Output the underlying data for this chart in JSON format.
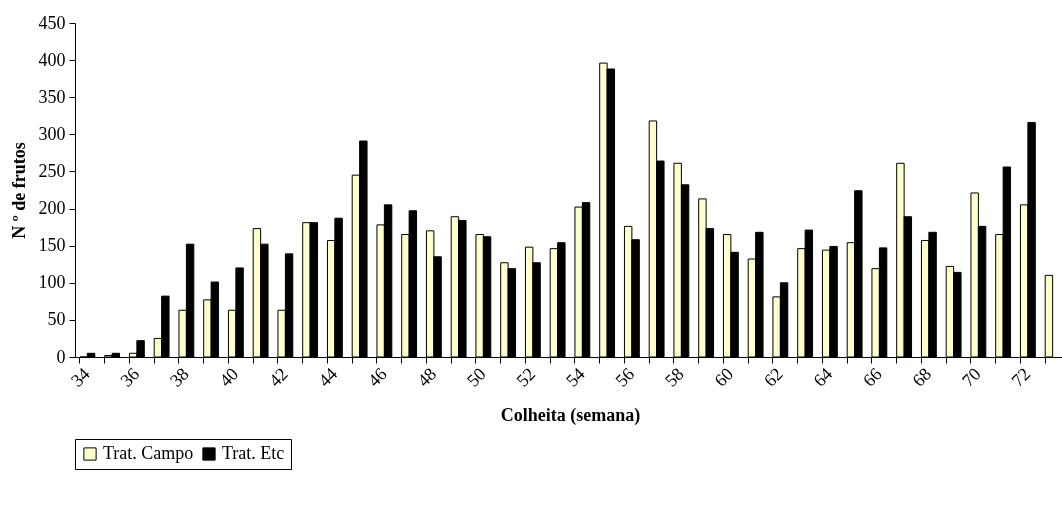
{
  "chart_data": {
    "type": "bar",
    "xlabel": "Colheita (semana)",
    "ylabel": "N º de frutos",
    "categories": [
      "34",
      null,
      "36",
      null,
      "38",
      null,
      "40",
      null,
      "42",
      null,
      "44",
      null,
      "46",
      null,
      "48",
      null,
      "50",
      null,
      "52",
      null,
      "54",
      null,
      "56",
      null,
      "58",
      null,
      "60",
      null,
      "62",
      null,
      "64",
      null,
      "66",
      null,
      "68",
      null,
      "70",
      null,
      "72",
      null
    ],
    "series": [
      {
        "name": "Trat. Campo",
        "color": "#ffffcc",
        "values": [
          0,
          2,
          5,
          25,
          63,
          77,
          63,
          173,
          63,
          181,
          157,
          245,
          178,
          165,
          170,
          189,
          165,
          127,
          148,
          146,
          202,
          396,
          176,
          318,
          261,
          213,
          165,
          132,
          81,
          146,
          144,
          154,
          119,
          261,
          157,
          122,
          221,
          165,
          205,
          110
        ]
      },
      {
        "name": "Trat. Etc",
        "color": "#000000",
        "values": [
          5,
          5,
          22,
          82,
          152,
          101,
          120,
          152,
          139,
          181,
          187,
          291,
          205,
          197,
          135,
          184,
          162,
          119,
          127,
          154,
          208,
          388,
          158,
          264,
          232,
          173,
          141,
          168,
          100,
          171,
          149,
          224,
          147,
          189,
          168,
          114,
          176,
          256,
          316,
          null
        ]
      }
    ],
    "ylim": [
      0,
      450
    ],
    "yticks": [
      0,
      50,
      100,
      150,
      200,
      250,
      300,
      350,
      400,
      450
    ],
    "grid": false,
    "legend": "bottom"
  }
}
